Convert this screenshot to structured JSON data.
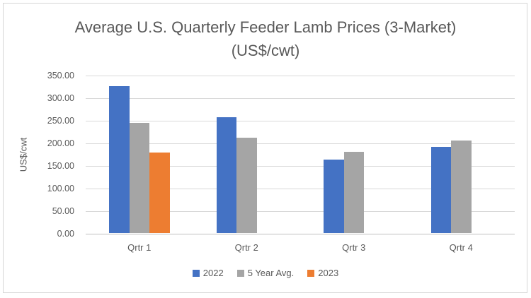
{
  "chart_data": {
    "type": "bar",
    "title": "Average U.S. Quarterly Feeder Lamb Prices (3-Market) (US$/cwt)",
    "title_lines": [
      "Average U.S. Quarterly Feeder Lamb Prices (3-Market)",
      "(US$/cwt)"
    ],
    "xlabel": "",
    "ylabel": "US$/cwt",
    "categories": [
      "Qrtr 1",
      "Qrtr 2",
      "Qrtr 3",
      "Qrtr 4"
    ],
    "series": [
      {
        "name": "2022",
        "color": "#4472C4",
        "values": [
          325,
          257,
          162,
          191
        ]
      },
      {
        "name": "5 Year Avg.",
        "color": "#A5A5A5",
        "values": [
          243,
          211,
          180,
          205
        ]
      },
      {
        "name": "2023",
        "color": "#ED7D31",
        "values": [
          178,
          null,
          null,
          null
        ]
      }
    ],
    "ylim": [
      0,
      350
    ],
    "ytick_step": 50,
    "ytick_labels": [
      "0.00",
      "50.00",
      "100.00",
      "150.00",
      "200.00",
      "250.00",
      "300.00",
      "350.00"
    ],
    "grid": true,
    "legend_position": "bottom"
  },
  "style": {
    "background": "#FFFFFF",
    "text_color": "#595959",
    "gridline_color": "#D9D9D9",
    "axis_line_color": "#BFBFBF",
    "border_color": "#D6D6D6"
  }
}
